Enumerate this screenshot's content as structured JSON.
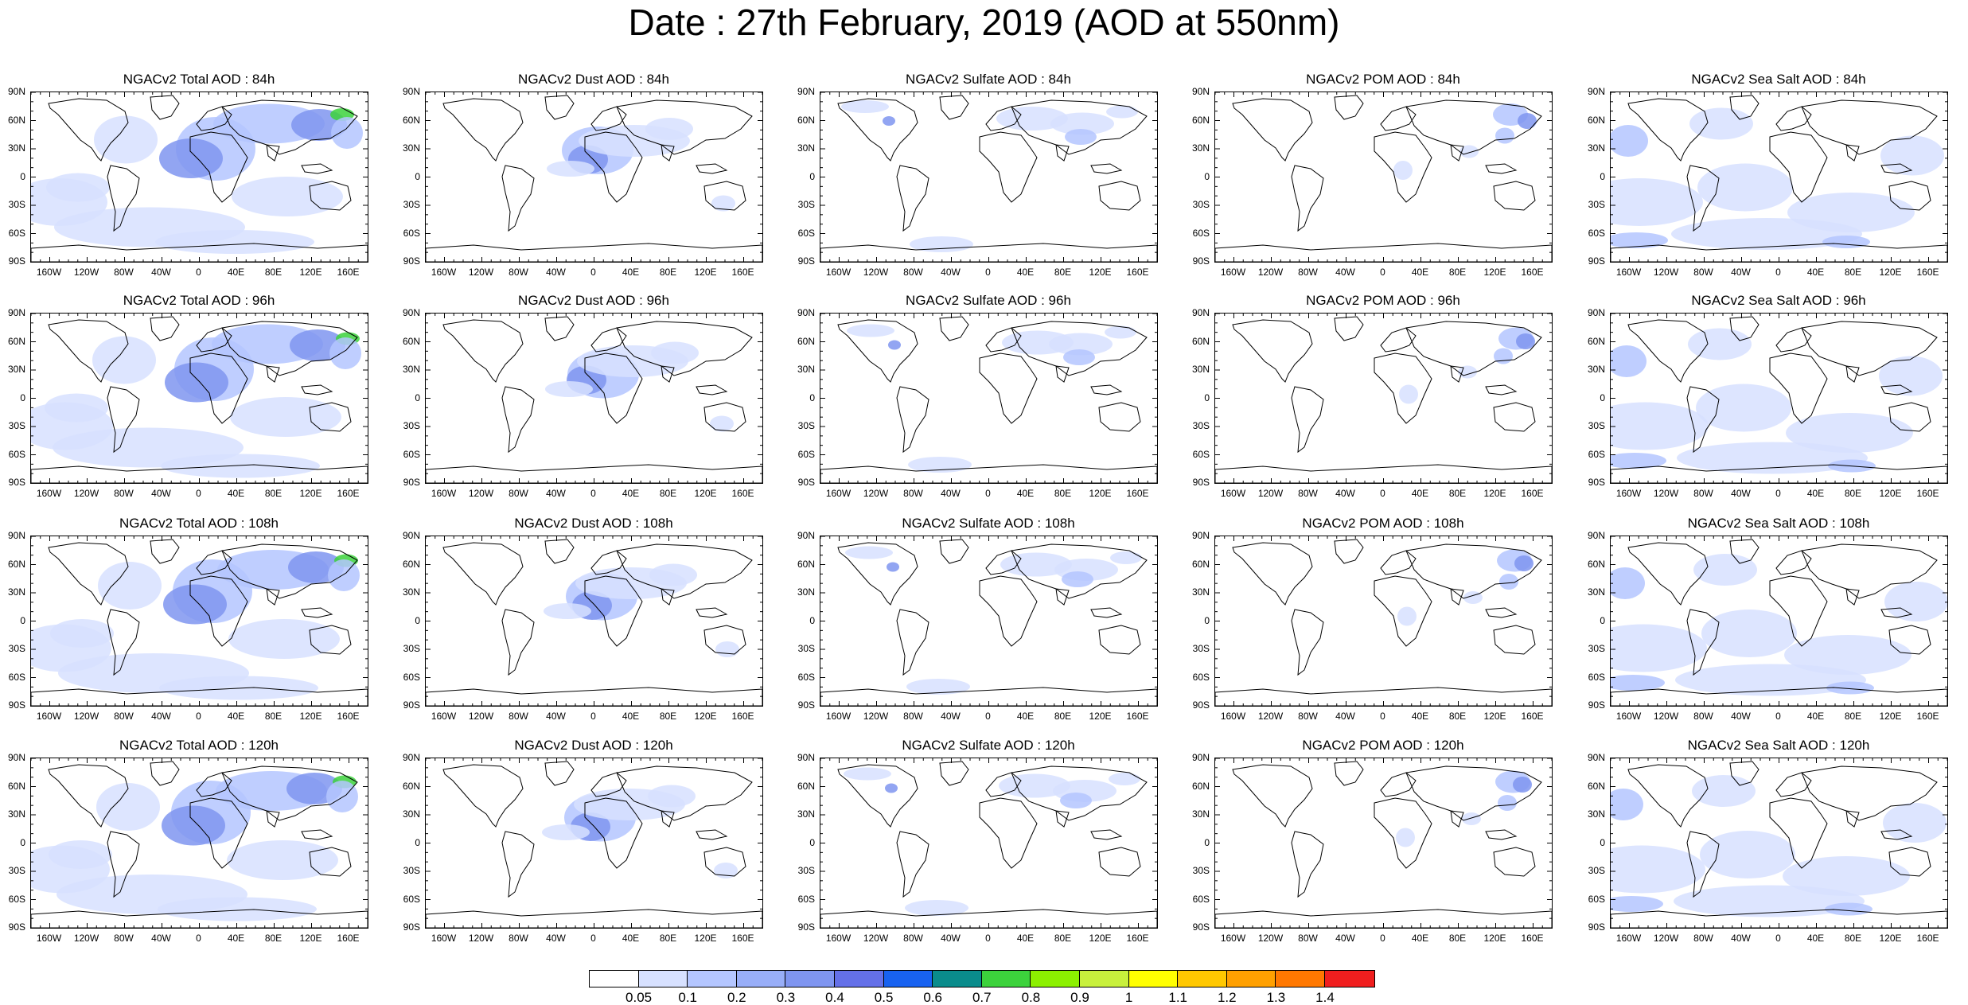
{
  "title": "Date : 27th February, 2019 (AOD at 550nm)",
  "panel_titles": [
    [
      "NGACv2 Total AOD : 84h",
      "NGACv2 Dust AOD : 84h",
      "NGACv2 Sulfate AOD : 84h",
      "NGACv2 POM AOD : 84h",
      "NGACv2 Sea Salt AOD : 84h"
    ],
    [
      "NGACv2 Total AOD : 96h",
      "NGACv2 Dust AOD : 96h",
      "NGACv2 Sulfate AOD : 96h",
      "NGACv2 POM AOD : 96h",
      "NGACv2 Sea Salt AOD : 96h"
    ],
    [
      "NGACv2 Total AOD : 108h",
      "NGACv2 Dust AOD : 108h",
      "NGACv2 Sulfate AOD : 108h",
      "NGACv2 POM AOD : 108h",
      "NGACv2 Sea Salt AOD : 108h"
    ],
    [
      "NGACv2 Total AOD : 120h",
      "NGACv2 Dust AOD : 120h",
      "NGACv2 Sulfate AOD : 120h",
      "NGACv2 POM AOD : 120h",
      "NGACv2 Sea Salt  AOD : 120h"
    ]
  ],
  "y_ticks": [
    "90N",
    "60N",
    "30N",
    "0",
    "30S",
    "60S",
    "90S"
  ],
  "x_ticks": [
    "160W",
    "120W",
    "80W",
    "40W",
    "0",
    "40E",
    "80E",
    "120E",
    "160E"
  ],
  "colorbar": {
    "labels": [
      "0.05",
      "0.1",
      "0.2",
      "0.3",
      "0.4",
      "0.5",
      "0.6",
      "0.7",
      "0.8",
      "0.9",
      "1",
      "1.1",
      "1.2",
      "1.3",
      "1.4"
    ],
    "colors": [
      "#ffffff",
      "#d7e1ff",
      "#b4c6ff",
      "#98aef8",
      "#7f95f0",
      "#6470e8",
      "#1862f0",
      "#0a8c8c",
      "#3cd23c",
      "#8cf000",
      "#c8f03c",
      "#ffff00",
      "#ffc800",
      "#ffa000",
      "#ff7800",
      "#f01e1e"
    ]
  },
  "colors": {
    "aerosol_light": "#d7e1ff",
    "aerosol_medium": "#b4c6ff",
    "aerosol_strong": "#7f95f0",
    "aerosol_peak": "#3cd23c"
  }
}
